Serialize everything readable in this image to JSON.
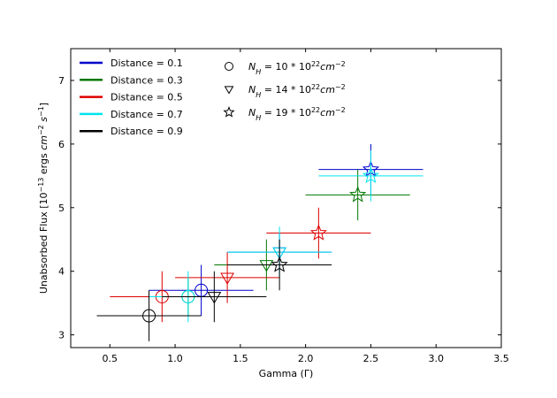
{
  "chart_data": {
    "type": "scatter",
    "xlabel": "Gamma (Γ)",
    "ylabel_parts": [
      "Unabsorbed Flux [10",
      "−13",
      " ergs ",
      "cm",
      "−2",
      " s",
      "−1",
      "]"
    ],
    "xlim": [
      0.2,
      3.5
    ],
    "ylim": [
      2.8,
      7.5
    ],
    "xticks": [
      0.5,
      1.0,
      1.5,
      2.0,
      2.5,
      3.0,
      3.5
    ],
    "xtick_labels": [
      "0.5",
      "1.0",
      "1.5",
      "2.0",
      "2.5",
      "3.0",
      "3.5"
    ],
    "yticks": [
      3,
      4,
      5,
      6,
      7
    ],
    "ytick_labels": [
      "3",
      "4",
      "5",
      "6",
      "7"
    ],
    "grid": false,
    "series": [
      {
        "name": "Distance = 0.1",
        "color": "#0000cc",
        "points": [
          {
            "marker": "circle",
            "x": 1.2,
            "y": 3.7,
            "xerr": [
              0.4,
              0.4
            ],
            "yerr": [
              0.4,
              0.4
            ]
          },
          {
            "marker": "triangle",
            "x": 1.8,
            "y": 4.3,
            "xerr": [
              0.4,
              0.4
            ],
            "yerr": [
              0.3,
              0.3
            ]
          },
          {
            "marker": "star",
            "x": 2.5,
            "y": 5.6,
            "xerr": [
              0.4,
              0.4
            ],
            "yerr": [
              0.4,
              0.4
            ]
          }
        ]
      },
      {
        "name": "Distance = 0.3",
        "color": "#007700",
        "points": [
          {
            "marker": "circle",
            "x": 1.1,
            "y": 3.6,
            "xerr": [
              0.3,
              0.3
            ],
            "yerr": [
              0.3,
              0.3
            ]
          },
          {
            "marker": "triangle",
            "x": 1.7,
            "y": 4.1,
            "xerr": [
              0.4,
              0.4
            ],
            "yerr": [
              0.4,
              0.4
            ]
          },
          {
            "marker": "star",
            "x": 2.4,
            "y": 5.2,
            "xerr": [
              0.4,
              0.4
            ],
            "yerr": [
              0.4,
              0.4
            ]
          }
        ]
      },
      {
        "name": "Distance = 0.5",
        "color": "#dd0000",
        "points": [
          {
            "marker": "circle",
            "x": 0.9,
            "y": 3.6,
            "xerr": [
              0.4,
              0.4
            ],
            "yerr": [
              0.4,
              0.4
            ]
          },
          {
            "marker": "triangle",
            "x": 1.4,
            "y": 3.9,
            "xerr": [
              0.4,
              0.4
            ],
            "yerr": [
              0.4,
              0.4
            ]
          },
          {
            "marker": "star",
            "x": 2.1,
            "y": 4.6,
            "xerr": [
              0.4,
              0.4
            ],
            "yerr": [
              0.4,
              0.4
            ]
          }
        ]
      },
      {
        "name": "Distance = 0.7",
        "color": "#00e5ee",
        "points": [
          {
            "marker": "circle",
            "x": 1.1,
            "y": 3.6,
            "xerr": [
              0.3,
              0.3
            ],
            "yerr": [
              0.4,
              0.4
            ]
          },
          {
            "marker": "triangle",
            "x": 1.8,
            "y": 4.3,
            "xerr": [
              0.4,
              0.4
            ],
            "yerr": [
              0.4,
              0.4
            ]
          },
          {
            "marker": "star",
            "x": 2.5,
            "y": 5.5,
            "xerr": [
              0.4,
              0.4
            ],
            "yerr": [
              0.4,
              0.4
            ]
          }
        ]
      },
      {
        "name": "Distance = 0.9",
        "color": "#000000",
        "points": [
          {
            "marker": "circle",
            "x": 0.8,
            "y": 3.3,
            "xerr": [
              0.4,
              0.4
            ],
            "yerr": [
              0.4,
              0.4
            ]
          },
          {
            "marker": "triangle",
            "x": 1.3,
            "y": 3.6,
            "xerr": [
              0.4,
              0.4
            ],
            "yerr": [
              0.4,
              0.4
            ]
          },
          {
            "marker": "star",
            "x": 1.8,
            "y": 4.1,
            "xerr": [
              0.4,
              0.4
            ],
            "yerr": [
              0.4,
              0.4
            ]
          }
        ]
      }
    ],
    "marker_legend": [
      {
        "marker": "circle",
        "parts": [
          "N",
          "H",
          " = 10 * 10",
          "22",
          "cm",
          "−2"
        ]
      },
      {
        "marker": "triangle",
        "parts": [
          "N",
          "H",
          " = 14 * 10",
          "22",
          "cm",
          "−2"
        ]
      },
      {
        "marker": "star",
        "parts": [
          "N",
          "H",
          " = 19 * 10",
          "22",
          "cm",
          "−2"
        ]
      }
    ]
  }
}
